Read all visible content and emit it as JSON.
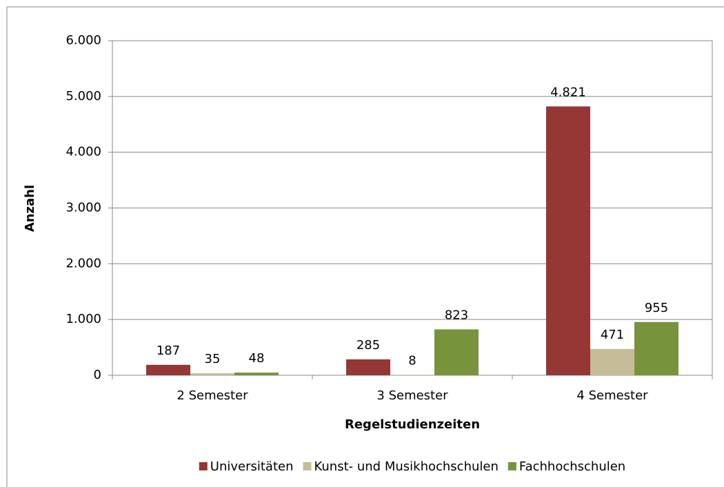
{
  "chart_data": {
    "type": "bar",
    "x_label": "Regelstudienzeiten",
    "y_label": "Anzahl",
    "categories": [
      "2 Semester",
      "3 Semester",
      "4 Semester"
    ],
    "series": [
      {
        "name": "Universitäten",
        "color": "#953735",
        "values": [
          187,
          285,
          4821
        ],
        "value_labels": [
          "187",
          "285",
          "4.821"
        ]
      },
      {
        "name": "Kunst- und Musikhochschulen",
        "color": "#c4bd97",
        "values": [
          35,
          8,
          471
        ],
        "value_labels": [
          "35",
          "8",
          "471"
        ]
      },
      {
        "name": "Fachhochschulen",
        "color": "#77933c",
        "values": [
          48,
          823,
          955
        ],
        "value_labels": [
          "48",
          "823",
          "955"
        ]
      }
    ],
    "ylim": [
      0,
      6000
    ],
    "yticks": [
      0,
      {
        "value": 1000,
        "label": "1.000"
      },
      {
        "value": 2000,
        "label": "2.000"
      },
      {
        "value": 3000,
        "label": "3.000"
      },
      {
        "value": 4000,
        "label": "4.000"
      },
      {
        "value": 5000,
        "label": "5.000"
      },
      {
        "value": 6000,
        "label": "6.000"
      }
    ],
    "grid": true,
    "legend": "bottom"
  }
}
